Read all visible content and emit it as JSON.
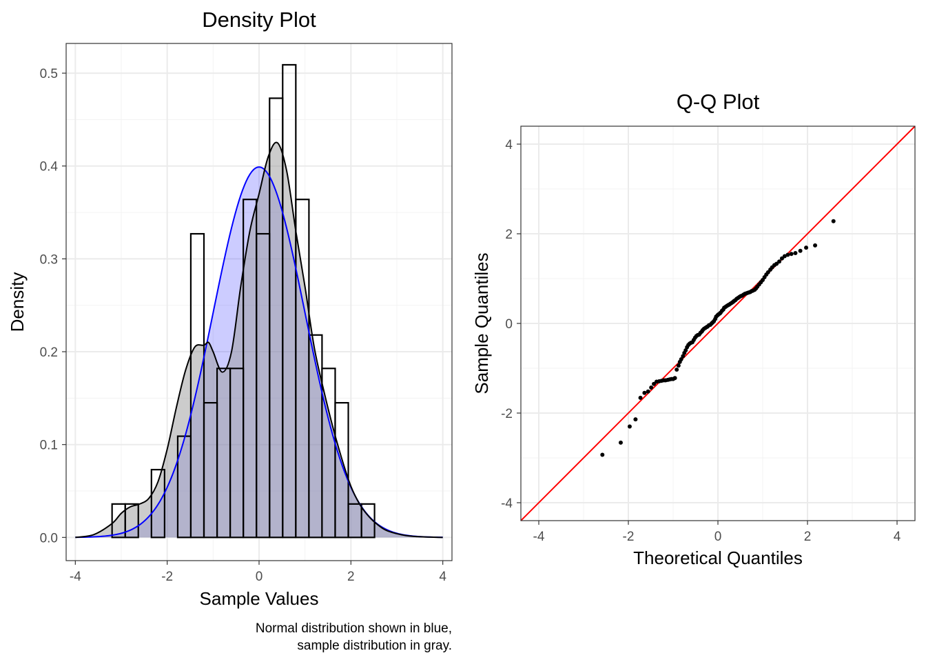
{
  "chart_data": [
    {
      "type": "histogram-density",
      "title": "Density Plot",
      "xlabel": "Sample Values",
      "ylabel": "Density",
      "xlim": [
        -4.2,
        4.2
      ],
      "ylim": [
        -0.025,
        0.532
      ],
      "xticks": [
        -4,
        -2,
        0,
        2,
        4
      ],
      "xtick_labels": [
        "-4",
        "-2",
        "0",
        "2",
        "4"
      ],
      "yticks": [
        0.0,
        0.1,
        0.2,
        0.3,
        0.4,
        0.5
      ],
      "ytick_labels": [
        "0.0",
        "0.1",
        "0.2",
        "0.3",
        "0.4",
        "0.5"
      ],
      "caption": [
        "Normal distribution shown in blue,",
        "sample distribution in gray."
      ],
      "colors": {
        "normal_fill": "#0000ff",
        "normal_line": "#0000ff",
        "sample_fill": "#999999",
        "sample_line": "#000000",
        "histogram_edge": "#000000"
      },
      "histogram": {
        "bin_width": 0.2857,
        "bins": [
          {
            "x0": -3.2,
            "x1": -2.914,
            "density": 0.036
          },
          {
            "x0": -2.914,
            "x1": -2.629,
            "density": 0.036
          },
          {
            "x0": -2.629,
            "x1": -2.343,
            "density": 0.0
          },
          {
            "x0": -2.343,
            "x1": -2.057,
            "density": 0.073
          },
          {
            "x0": -2.057,
            "x1": -1.771,
            "density": 0.0
          },
          {
            "x0": -1.771,
            "x1": -1.486,
            "density": 0.109
          },
          {
            "x0": -1.486,
            "x1": -1.2,
            "density": 0.327
          },
          {
            "x0": -1.2,
            "x1": -0.914,
            "density": 0.145
          },
          {
            "x0": -0.914,
            "x1": -0.629,
            "density": 0.182
          },
          {
            "x0": -0.629,
            "x1": -0.343,
            "density": 0.182
          },
          {
            "x0": -0.343,
            "x1": -0.057,
            "density": 0.364
          },
          {
            "x0": -0.057,
            "x1": 0.229,
            "density": 0.327
          },
          {
            "x0": 0.229,
            "x1": 0.514,
            "density": 0.473
          },
          {
            "x0": 0.514,
            "x1": 0.8,
            "density": 0.509
          },
          {
            "x0": 0.8,
            "x1": 1.086,
            "density": 0.364
          },
          {
            "x0": 1.086,
            "x1": 1.371,
            "density": 0.218
          },
          {
            "x0": 1.371,
            "x1": 1.657,
            "density": 0.182
          },
          {
            "x0": 1.657,
            "x1": 1.943,
            "density": 0.145
          },
          {
            "x0": 1.943,
            "x1": 2.229,
            "density": 0.036
          },
          {
            "x0": 2.229,
            "x1": 2.514,
            "density": 0.036
          }
        ]
      },
      "normal_density": {
        "mean": 0,
        "sd": 1,
        "x_range": [
          -4,
          4
        ]
      },
      "sample_density": {
        "x": [
          -4.0,
          -3.6,
          -3.2,
          -3.0,
          -2.8,
          -2.6,
          -2.4,
          -2.2,
          -2.0,
          -1.8,
          -1.6,
          -1.4,
          -1.2,
          -1.1,
          -1.0,
          -0.8,
          -0.6,
          -0.4,
          -0.2,
          0.0,
          0.2,
          0.4,
          0.6,
          0.8,
          1.0,
          1.2,
          1.4,
          1.6,
          1.8,
          2.0,
          2.2,
          2.4,
          2.6,
          2.8,
          3.2,
          3.6,
          4.0
        ],
        "y": [
          0.0,
          0.003,
          0.015,
          0.026,
          0.033,
          0.036,
          0.042,
          0.06,
          0.095,
          0.14,
          0.18,
          0.205,
          0.207,
          0.21,
          0.2,
          0.178,
          0.2,
          0.27,
          0.33,
          0.37,
          0.41,
          0.425,
          0.395,
          0.33,
          0.27,
          0.205,
          0.16,
          0.12,
          0.085,
          0.055,
          0.035,
          0.022,
          0.013,
          0.007,
          0.002,
          0.0005,
          0.0
        ]
      }
    },
    {
      "type": "scatter",
      "title": "Q-Q Plot",
      "xlabel": "Theoretical Quantiles",
      "ylabel": "Sample Quantiles",
      "xlim": [
        -4.4,
        4.4
      ],
      "ylim": [
        -4.4,
        4.4
      ],
      "xticks": [
        -4,
        -2,
        0,
        2,
        4
      ],
      "xtick_labels": [
        "-4",
        "-2",
        "0",
        "2",
        "4"
      ],
      "yticks": [
        -4,
        -2,
        0,
        2,
        4
      ],
      "ytick_labels": [
        "-4",
        "-2",
        "0",
        "2",
        "4"
      ],
      "colors": {
        "points": "#000000",
        "reference_line": "#ff0000"
      },
      "reference_line": {
        "slope": 1,
        "intercept": 0
      },
      "points": [
        [
          -2.58,
          -2.93
        ],
        [
          -2.17,
          -2.66
        ],
        [
          -1.97,
          -2.3
        ],
        [
          -1.84,
          -2.14
        ],
        [
          -1.73,
          -1.66
        ],
        [
          -1.64,
          -1.55
        ],
        [
          -1.56,
          -1.52
        ],
        [
          -1.49,
          -1.43
        ],
        [
          -1.43,
          -1.35
        ],
        [
          -1.37,
          -1.3
        ],
        [
          -1.31,
          -1.29
        ],
        [
          -1.26,
          -1.28
        ],
        [
          -1.21,
          -1.27
        ],
        [
          -1.17,
          -1.27
        ],
        [
          -1.12,
          -1.26
        ],
        [
          -1.08,
          -1.25
        ],
        [
          -1.04,
          -1.24
        ],
        [
          -1.0,
          -1.24
        ],
        [
          -0.96,
          -1.22
        ],
        [
          -0.92,
          -1.03
        ],
        [
          -0.88,
          -0.94
        ],
        [
          -0.85,
          -0.86
        ],
        [
          -0.82,
          -0.8
        ],
        [
          -0.78,
          -0.73
        ],
        [
          -0.75,
          -0.66
        ],
        [
          -0.72,
          -0.6
        ],
        [
          -0.69,
          -0.53
        ],
        [
          -0.66,
          -0.48
        ],
        [
          -0.63,
          -0.45
        ],
        [
          -0.6,
          -0.43
        ],
        [
          -0.57,
          -0.42
        ],
        [
          -0.54,
          -0.37
        ],
        [
          -0.51,
          -0.32
        ],
        [
          -0.48,
          -0.28
        ],
        [
          -0.45,
          -0.26
        ],
        [
          -0.42,
          -0.25
        ],
        [
          -0.39,
          -0.21
        ],
        [
          -0.36,
          -0.18
        ],
        [
          -0.34,
          -0.15
        ],
        [
          -0.31,
          -0.12
        ],
        [
          -0.28,
          -0.1
        ],
        [
          -0.25,
          -0.08
        ],
        [
          -0.23,
          -0.07
        ],
        [
          -0.2,
          -0.04
        ],
        [
          -0.17,
          -0.03
        ],
        [
          -0.14,
          0.0
        ],
        [
          -0.12,
          0.02
        ],
        [
          -0.09,
          0.05
        ],
        [
          -0.06,
          0.1
        ],
        [
          -0.04,
          0.15
        ],
        [
          -0.01,
          0.18
        ],
        [
          0.01,
          0.2
        ],
        [
          0.04,
          0.22
        ],
        [
          0.06,
          0.24
        ],
        [
          0.09,
          0.28
        ],
        [
          0.12,
          0.31
        ],
        [
          0.14,
          0.35
        ],
        [
          0.17,
          0.37
        ],
        [
          0.2,
          0.39
        ],
        [
          0.23,
          0.41
        ],
        [
          0.25,
          0.42
        ],
        [
          0.28,
          0.44
        ],
        [
          0.31,
          0.46
        ],
        [
          0.34,
          0.48
        ],
        [
          0.36,
          0.5
        ],
        [
          0.39,
          0.52
        ],
        [
          0.42,
          0.55
        ],
        [
          0.45,
          0.57
        ],
        [
          0.48,
          0.59
        ],
        [
          0.51,
          0.61
        ],
        [
          0.54,
          0.62
        ],
        [
          0.57,
          0.64
        ],
        [
          0.6,
          0.66
        ],
        [
          0.63,
          0.67
        ],
        [
          0.66,
          0.68
        ],
        [
          0.69,
          0.69
        ],
        [
          0.72,
          0.7
        ],
        [
          0.75,
          0.72
        ],
        [
          0.78,
          0.73
        ],
        [
          0.82,
          0.75
        ],
        [
          0.85,
          0.78
        ],
        [
          0.88,
          0.82
        ],
        [
          0.92,
          0.87
        ],
        [
          0.96,
          0.92
        ],
        [
          1.0,
          0.97
        ],
        [
          1.04,
          1.03
        ],
        [
          1.08,
          1.09
        ],
        [
          1.12,
          1.14
        ],
        [
          1.17,
          1.2
        ],
        [
          1.21,
          1.25
        ],
        [
          1.26,
          1.3
        ],
        [
          1.31,
          1.33
        ],
        [
          1.37,
          1.38
        ],
        [
          1.43,
          1.45
        ],
        [
          1.49,
          1.5
        ],
        [
          1.56,
          1.53
        ],
        [
          1.64,
          1.55
        ],
        [
          1.73,
          1.57
        ],
        [
          1.84,
          1.62
        ],
        [
          1.97,
          1.69
        ],
        [
          2.17,
          1.74
        ],
        [
          2.58,
          2.28
        ]
      ]
    }
  ]
}
